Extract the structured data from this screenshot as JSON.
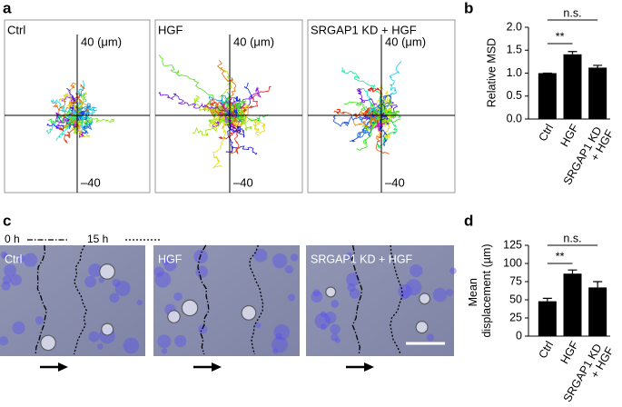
{
  "panel_labels": [
    "a",
    "b",
    "c",
    "d"
  ],
  "panel_a": {
    "conditions": [
      "Ctrl",
      "HGF",
      "SRGAP1 KD + HGF"
    ],
    "axis_top": "40 (μm)",
    "axis_bottom": "–40"
  },
  "panel_c": {
    "legend": [
      "0 h",
      "15 h"
    ],
    "conditions": [
      "Ctrl",
      "HGF",
      "SRGAP1 KD + HGF"
    ]
  },
  "chart_data": [
    {
      "type": "bar",
      "y_label": "Relative MSD",
      "categories": [
        "Ctrl",
        "HGF",
        "SRGAP1 KD + HGF"
      ],
      "values": [
        1.0,
        1.41,
        1.12
      ],
      "errors": [
        0,
        0.06,
        0.05
      ],
      "color": "#000000",
      "ylim": [
        0,
        2.0
      ],
      "yticks": [
        {
          "value": 0,
          "label": "0.0"
        },
        0.5,
        {
          "value": 1.0,
          "label": "1.0"
        },
        1.5,
        {
          "value": 2.0,
          "label": "2.0"
        }
      ],
      "annotations": [
        "**",
        "n.s."
      ]
    },
    {
      "type": "bar",
      "y_label": "Mean displacement (µm)",
      "categories": [
        "Ctrl",
        "HGF",
        "SRGAP1 KD + HGF"
      ],
      "values": [
        48,
        86,
        67
      ],
      "errors": [
        4,
        5,
        8
      ],
      "color": "#000000",
      "ylim": [
        0,
        125
      ],
      "yticks": [
        0,
        25,
        50,
        75,
        100,
        125
      ],
      "annotations": [
        "**",
        "n.s."
      ]
    }
  ]
}
